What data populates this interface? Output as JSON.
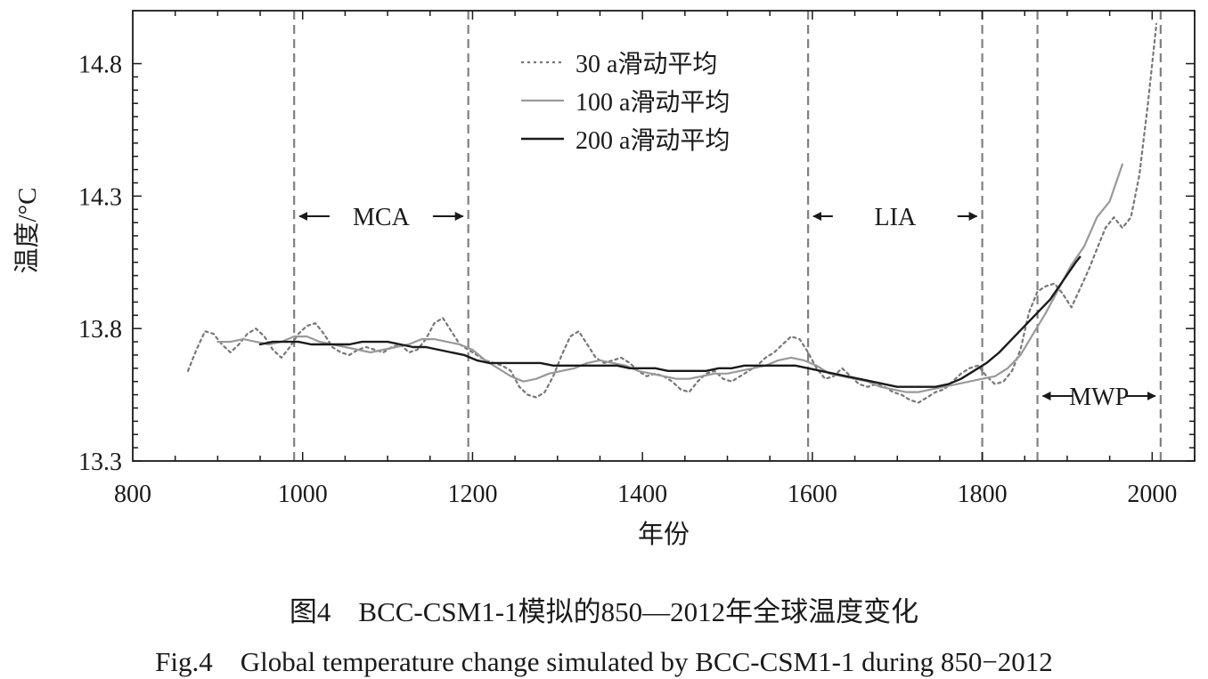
{
  "chart_data": {
    "type": "line",
    "xlabel": "年份",
    "ylabel": "温度/°C",
    "xlim": [
      800,
      2050
    ],
    "ylim": [
      13.3,
      15.0
    ],
    "xticks": [
      "800",
      "1000",
      "1200",
      "1400",
      "1600",
      "1800",
      "2000"
    ],
    "yticks": [
      "13.3",
      "13.8",
      "14.3",
      "14.8"
    ],
    "legend_position": "top-center",
    "series": [
      {
        "name": "30 a滑动平均",
        "style": "dotted",
        "color": "#777777",
        "x": [
          865,
          875,
          885,
          895,
          905,
          915,
          925,
          935,
          945,
          955,
          965,
          975,
          985,
          995,
          1005,
          1015,
          1025,
          1035,
          1045,
          1055,
          1065,
          1075,
          1085,
          1095,
          1105,
          1115,
          1125,
          1135,
          1145,
          1155,
          1165,
          1175,
          1185,
          1195,
          1205,
          1215,
          1225,
          1235,
          1245,
          1255,
          1265,
          1275,
          1285,
          1295,
          1305,
          1315,
          1325,
          1335,
          1345,
          1355,
          1365,
          1375,
          1385,
          1395,
          1405,
          1415,
          1425,
          1435,
          1445,
          1455,
          1465,
          1475,
          1485,
          1495,
          1505,
          1515,
          1525,
          1535,
          1545,
          1555,
          1565,
          1575,
          1585,
          1595,
          1605,
          1615,
          1625,
          1635,
          1645,
          1655,
          1665,
          1675,
          1685,
          1695,
          1705,
          1715,
          1725,
          1735,
          1745,
          1755,
          1765,
          1775,
          1785,
          1795,
          1805,
          1815,
          1825,
          1835,
          1845,
          1855,
          1865,
          1875,
          1885,
          1895,
          1905,
          1915,
          1925,
          1935,
          1945,
          1955,
          1965,
          1975,
          1985,
          1995,
          2005
        ],
        "y": [
          13.64,
          13.72,
          13.79,
          13.78,
          13.74,
          13.71,
          13.74,
          13.78,
          13.8,
          13.77,
          13.72,
          13.69,
          13.73,
          13.78,
          13.81,
          13.82,
          13.78,
          13.73,
          13.71,
          13.7,
          13.72,
          13.73,
          13.72,
          13.71,
          13.73,
          13.74,
          13.71,
          13.72,
          13.76,
          13.82,
          13.84,
          13.79,
          13.74,
          13.72,
          13.7,
          13.68,
          13.67,
          13.66,
          13.64,
          13.58,
          13.55,
          13.54,
          13.56,
          13.62,
          13.7,
          13.77,
          13.79,
          13.74,
          13.69,
          13.67,
          13.68,
          13.69,
          13.67,
          13.64,
          13.62,
          13.63,
          13.62,
          13.6,
          13.57,
          13.56,
          13.6,
          13.63,
          13.64,
          13.61,
          13.6,
          13.62,
          13.64,
          13.66,
          13.69,
          13.71,
          13.74,
          13.77,
          13.76,
          13.71,
          13.65,
          13.61,
          13.62,
          13.65,
          13.62,
          13.59,
          13.58,
          13.59,
          13.58,
          13.56,
          13.55,
          13.53,
          13.52,
          13.54,
          13.56,
          13.57,
          13.6,
          13.63,
          13.65,
          13.66,
          13.62,
          13.59,
          13.6,
          13.64,
          13.72,
          13.86,
          13.94,
          13.96,
          13.97,
          13.93,
          13.88,
          13.95,
          14.02,
          14.1,
          14.18,
          14.22,
          14.18,
          14.22,
          14.38,
          14.65,
          14.95
        ]
      },
      {
        "name": "100 a滑动平均",
        "style": "solid",
        "color": "#999999",
        "x": [
          900,
          915,
          930,
          945,
          960,
          975,
          990,
          1005,
          1020,
          1035,
          1050,
          1065,
          1080,
          1095,
          1110,
          1125,
          1140,
          1155,
          1170,
          1185,
          1200,
          1215,
          1230,
          1245,
          1260,
          1275,
          1290,
          1305,
          1320,
          1335,
          1350,
          1365,
          1380,
          1395,
          1410,
          1425,
          1440,
          1455,
          1470,
          1485,
          1500,
          1515,
          1530,
          1545,
          1560,
          1575,
          1590,
          1605,
          1620,
          1635,
          1650,
          1665,
          1680,
          1695,
          1710,
          1725,
          1740,
          1755,
          1770,
          1785,
          1800,
          1815,
          1830,
          1845,
          1860,
          1875,
          1890,
          1905,
          1920,
          1935,
          1950,
          1965
        ],
        "y": [
          13.75,
          13.75,
          13.76,
          13.75,
          13.74,
          13.75,
          13.77,
          13.77,
          13.75,
          13.74,
          13.73,
          13.72,
          13.71,
          13.72,
          13.73,
          13.74,
          13.76,
          13.76,
          13.75,
          13.74,
          13.72,
          13.68,
          13.65,
          13.62,
          13.6,
          13.61,
          13.63,
          13.64,
          13.65,
          13.67,
          13.68,
          13.67,
          13.66,
          13.64,
          13.63,
          13.62,
          13.61,
          13.61,
          13.62,
          13.63,
          13.63,
          13.64,
          13.65,
          13.66,
          13.68,
          13.69,
          13.68,
          13.66,
          13.63,
          13.62,
          13.61,
          13.6,
          13.58,
          13.57,
          13.56,
          13.56,
          13.57,
          13.58,
          13.59,
          13.6,
          13.61,
          13.62,
          13.65,
          13.7,
          13.78,
          13.86,
          13.95,
          14.04,
          14.11,
          14.22,
          14.28,
          14.42
        ]
      },
      {
        "name": "200 a滑动平均",
        "style": "solid",
        "color": "#1a1a1a",
        "x": [
          950,
          965,
          980,
          995,
          1010,
          1025,
          1040,
          1055,
          1070,
          1085,
          1100,
          1115,
          1130,
          1145,
          1160,
          1175,
          1190,
          1205,
          1220,
          1235,
          1250,
          1265,
          1280,
          1295,
          1310,
          1325,
          1340,
          1355,
          1370,
          1385,
          1400,
          1415,
          1430,
          1445,
          1460,
          1475,
          1490,
          1505,
          1520,
          1535,
          1550,
          1565,
          1580,
          1595,
          1610,
          1625,
          1640,
          1655,
          1670,
          1685,
          1700,
          1715,
          1730,
          1745,
          1760,
          1775,
          1790,
          1805,
          1820,
          1835,
          1850,
          1865,
          1880,
          1895,
          1910,
          1915
        ],
        "y": [
          13.74,
          13.75,
          13.75,
          13.75,
          13.74,
          13.74,
          13.74,
          13.74,
          13.75,
          13.75,
          13.75,
          13.74,
          13.73,
          13.73,
          13.72,
          13.71,
          13.7,
          13.68,
          13.67,
          13.67,
          13.67,
          13.67,
          13.67,
          13.66,
          13.66,
          13.66,
          13.66,
          13.66,
          13.66,
          13.65,
          13.65,
          13.65,
          13.64,
          13.64,
          13.64,
          13.64,
          13.65,
          13.65,
          13.66,
          13.66,
          13.66,
          13.66,
          13.66,
          13.65,
          13.64,
          13.63,
          13.62,
          13.61,
          13.6,
          13.59,
          13.58,
          13.58,
          13.58,
          13.58,
          13.59,
          13.61,
          13.64,
          13.67,
          13.71,
          13.76,
          13.81,
          13.86,
          13.91,
          13.98,
          14.05,
          14.07
        ]
      }
    ],
    "vlines": [
      990,
      1195,
      1595,
      1800,
      1865,
      2010
    ],
    "periods": [
      {
        "label": "MCA",
        "from": 990,
        "to": 1195
      },
      {
        "label": "LIA",
        "from": 1595,
        "to": 1800
      },
      {
        "label": "MWP",
        "from": 1865,
        "to": 2010
      }
    ]
  },
  "caption": {
    "cn": "图4　BCC-CSM1-1模拟的850—2012年全球温度变化",
    "en": "Fig.4　Global temperature change simulated by BCC-CSM1-1 during 850−2012"
  }
}
